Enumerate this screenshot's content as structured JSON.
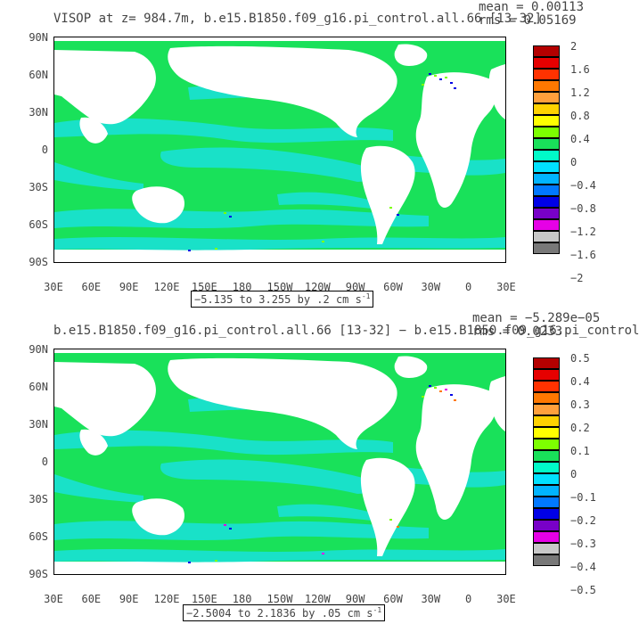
{
  "panel1": {
    "title": "VISOP at z= 984.7m, b.e15.B1850.f09_g16.pi_control.all.66 [13-32]",
    "mean": "mean = 0.00113",
    "rms": "rms = 0.05169",
    "range_text": "−5.135 to 3.255 by .2 cm s",
    "range_exp": "-1",
    "colorbar_labels": [
      "2",
      "1.6",
      "1.2",
      "0.8",
      "0.4",
      "0",
      "−0.4",
      "−0.8",
      "−1.2",
      "−1.6",
      "−2"
    ]
  },
  "panel2": {
    "title": "b.e15.B1850.f09_g16.pi_control.all.66 [13-32] − b.e15.B1850.f09_g16.pi_control",
    "mean": "mean = −5.289e−05",
    "rms": "rms = 0.0233",
    "range_text": "−2.5004 to 2.1836 by .05 cm s",
    "range_exp": "-1",
    "colorbar_labels": [
      "0.5",
      "0.4",
      "0.3",
      "0.2",
      "0.1",
      "0",
      "−0.1",
      "−0.2",
      "−0.3",
      "−0.4",
      "−0.5"
    ]
  },
  "axes": {
    "lat_labels": [
      "90N",
      "60N",
      "30N",
      "0",
      "30S",
      "60S",
      "90S"
    ],
    "lon_labels": [
      "30E",
      "60E",
      "90E",
      "120E",
      "150E",
      "180",
      "150W",
      "120W",
      "90W",
      "60W",
      "30W",
      "0",
      "30E"
    ]
  },
  "colors": {
    "ocean_main": "#19e15a",
    "ocean_alt": "#19e1c8",
    "land": "#ffffff",
    "colorbar": [
      "#b40000",
      "#e60000",
      "#ff3200",
      "#ff7800",
      "#ffa03c",
      "#ffd200",
      "#ffff00",
      "#7dff00",
      "#19e15a",
      "#00fac8",
      "#00e1ff",
      "#00b4ff",
      "#0078ff",
      "#0000e6",
      "#7800c8",
      "#e600e6",
      "#c8c8c8",
      "#787878"
    ]
  }
}
